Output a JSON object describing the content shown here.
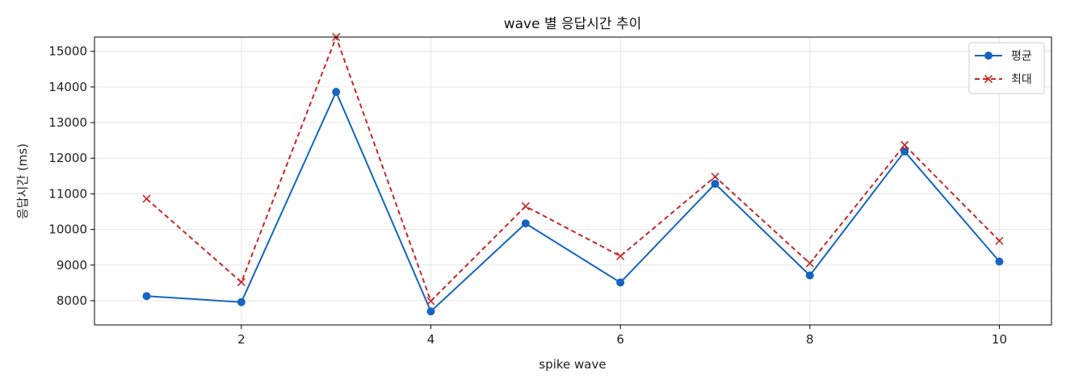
{
  "chart_data": {
    "type": "line",
    "title": "wave 별 응답시간 추이",
    "xlabel": "spike wave",
    "ylabel": "응답시간 (ms)",
    "x": [
      1,
      2,
      3,
      4,
      5,
      6,
      7,
      8,
      9,
      10
    ],
    "xlim": [
      0.45,
      10.55
    ],
    "ylim": [
      7320,
      15400
    ],
    "xticks": [
      2,
      4,
      6,
      8,
      10
    ],
    "yticks": [
      8000,
      9000,
      10000,
      11000,
      12000,
      13000,
      14000,
      15000
    ],
    "grid": true,
    "legend_position": "top-right",
    "series": [
      {
        "name": "평균",
        "color": "#1565c0",
        "line_style": "solid",
        "marker": "circle",
        "values": [
          8130,
          7960,
          13860,
          7700,
          10170,
          8510,
          11280,
          8710,
          12190,
          9100
        ]
      },
      {
        "name": "최대",
        "color": "#c62828",
        "line_style": "dashed",
        "marker": "x",
        "values": [
          10860,
          8520,
          15400,
          7990,
          10650,
          9250,
          11480,
          9050,
          12370,
          9680
        ]
      }
    ]
  }
}
